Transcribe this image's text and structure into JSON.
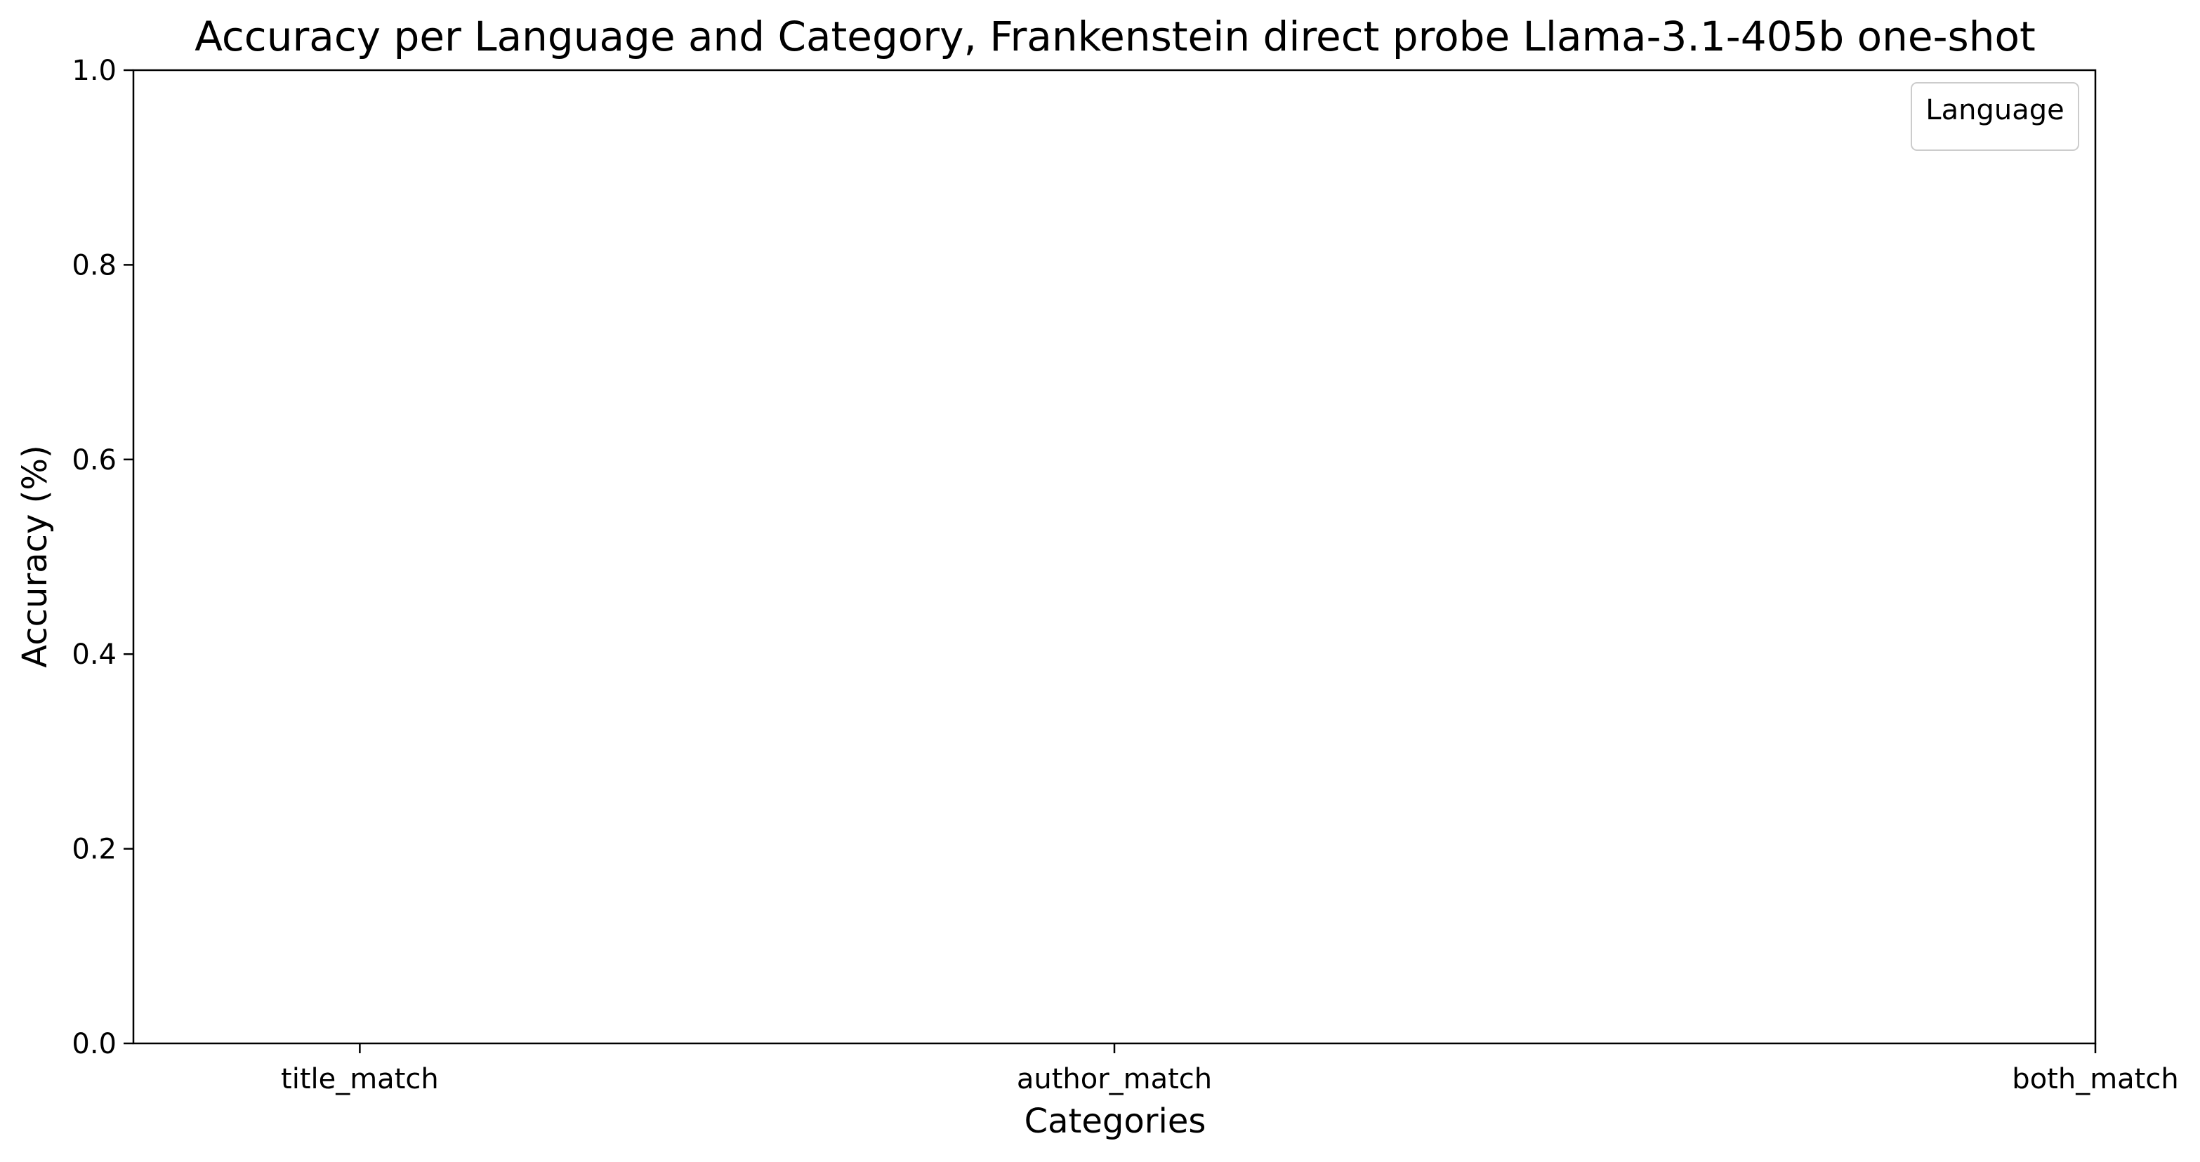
{
  "chart_data": {
    "type": "bar",
    "title": "Accuracy per Language and Category, Frankenstein direct probe Llama-3.1-405b one-shot",
    "xlabel": "Categories",
    "ylabel": "Accuracy (%)",
    "categories": [
      "title_match",
      "author_match",
      "both_match"
    ],
    "category_positions": [
      0,
      1,
      2.3
    ],
    "xlim": [
      -0.3,
      2.3
    ],
    "ylim": [
      0.0,
      1.0
    ],
    "yticks": [
      0.0,
      0.2,
      0.4,
      0.6,
      0.8,
      1.0
    ],
    "ytick_labels": [
      "0.0",
      "0.2",
      "0.4",
      "0.6",
      "0.8",
      "1.0"
    ],
    "series": [],
    "legend": {
      "title": "Language",
      "placement": "top-right",
      "entries": []
    },
    "grid": false
  }
}
